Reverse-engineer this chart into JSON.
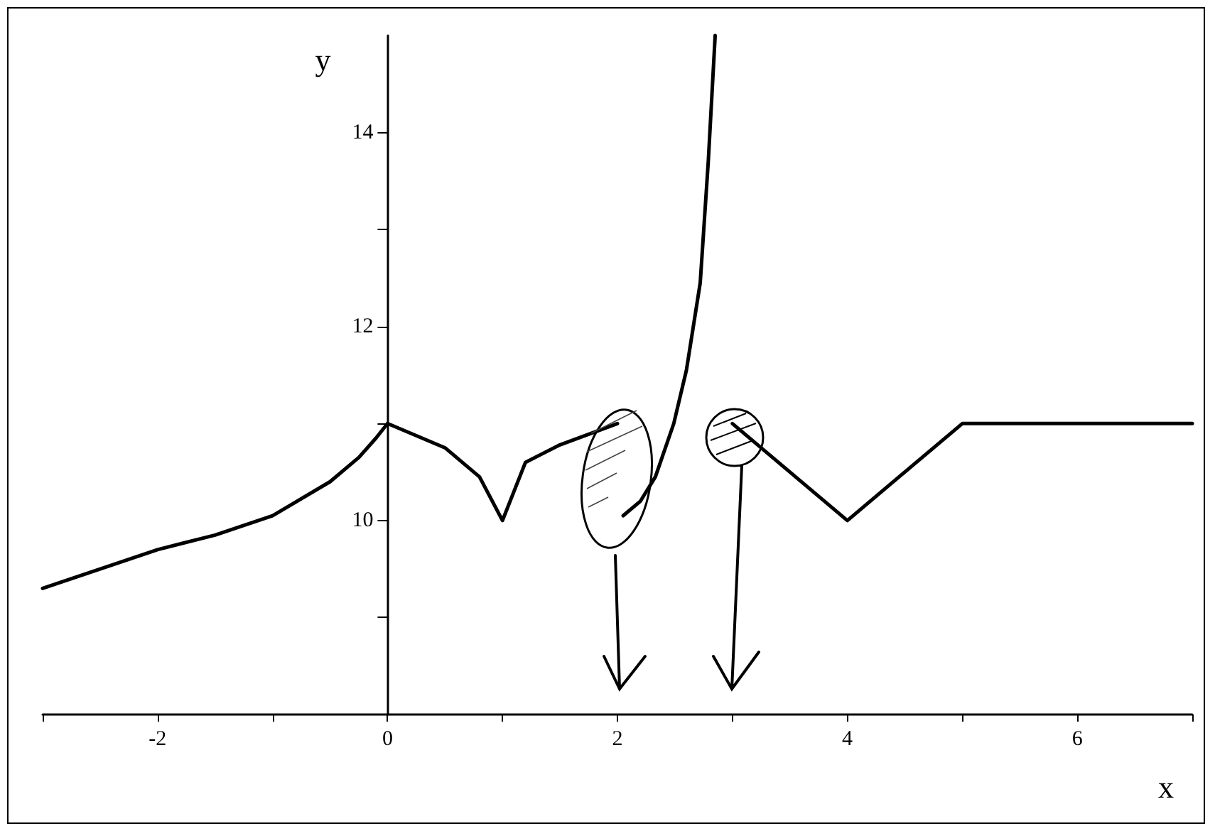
{
  "chart_data": {
    "type": "line",
    "xlabel": "x",
    "ylabel": "y",
    "xlim": [
      -3,
      7
    ],
    "ylim": [
      8,
      15
    ],
    "xticks": [
      {
        "value": -3,
        "label": null
      },
      -2,
      {
        "value": -1,
        "label": null
      },
      0,
      {
        "value": 1,
        "label": null
      },
      2,
      {
        "value": 3,
        "label": null
      },
      4,
      {
        "value": 5,
        "label": null
      },
      6,
      {
        "value": 7,
        "label": null
      }
    ],
    "yticks": [
      {
        "value": 9,
        "label": null
      },
      10,
      {
        "value": 11,
        "label": null
      },
      12,
      {
        "value": 13,
        "label": null
      },
      14
    ],
    "grid": false,
    "marker": "none",
    "line_style": "solid",
    "series": [
      {
        "color": "#000000",
        "x": [
          -3,
          -2.5,
          -2,
          -1.5,
          -1,
          -0.5,
          -0.25,
          -0.1,
          0
        ],
        "values": [
          9.3,
          9.5,
          9.7,
          9.85,
          10.05,
          10.4,
          10.65,
          10.85,
          11
        ]
      },
      {
        "color": "#000000",
        "x": [
          0,
          0.5,
          0.8,
          1,
          1.2,
          1.5,
          2
        ],
        "values": [
          11,
          10.75,
          10.45,
          10,
          10.6,
          10.78,
          11
        ]
      },
      {
        "color": "#000000",
        "x": [
          2.05,
          2.2,
          2.33,
          2.49,
          2.6,
          2.72,
          2.79,
          2.85
        ],
        "values": [
          10.05,
          10.2,
          10.45,
          11,
          11.55,
          12.45,
          13.7,
          15
        ]
      },
      {
        "color": "#000000",
        "x": [
          3,
          4,
          5,
          7
        ],
        "values": [
          11,
          10,
          11,
          11
        ]
      }
    ]
  }
}
